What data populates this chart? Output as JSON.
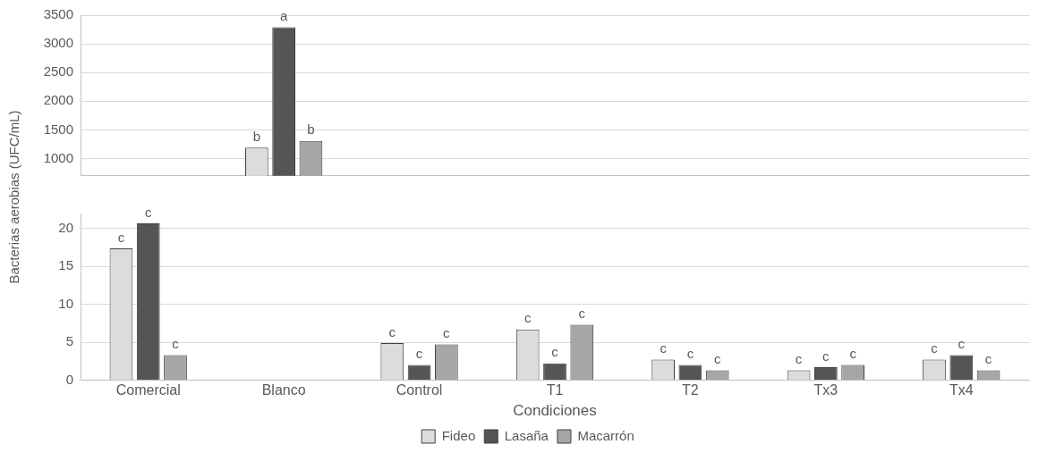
{
  "chart_data": [
    {
      "type": "bar",
      "ylabel": "Bacterias aerobias  (UFC/mL)",
      "categories": [
        null,
        null,
        null,
        null,
        null,
        null,
        null
      ],
      "series": [
        {
          "color": "#dcdcdc",
          "values": [
            null,
            1190,
            null,
            null,
            null,
            null,
            null
          ],
          "value_labels": [
            null,
            "b",
            null,
            null,
            null,
            null,
            null
          ]
        },
        {
          "color": "#555555",
          "values": [
            null,
            3290,
            null,
            null,
            null,
            null,
            null
          ],
          "value_labels": [
            null,
            "a",
            null,
            null,
            null,
            null,
            null
          ]
        },
        {
          "color": "#a6a6a6",
          "values": [
            null,
            1310,
            null,
            null,
            null,
            null,
            null
          ],
          "value_labels": [
            null,
            "b",
            null,
            null,
            null,
            null,
            null
          ]
        }
      ],
      "ylim": [
        700,
        3500
      ],
      "yticks": [
        1000,
        1500,
        2000,
        2500,
        3000,
        3500
      ],
      "grid": "y"
    },
    {
      "type": "bar",
      "xlabel": "Condiciones",
      "categories": [
        "Comercial",
        "Blanco",
        "Control",
        "T1",
        "T2",
        "Tx3",
        "Tx4"
      ],
      "series": [
        {
          "name": "Fideo",
          "color": "#dcdcdc",
          "values": [
            17.4,
            null,
            4.9,
            6.7,
            2.7,
            1.3,
            2.7
          ],
          "value_labels": [
            "c",
            null,
            "c",
            "c",
            "c",
            "c",
            "c"
          ]
        },
        {
          "name": "Lasaña",
          "color": "#555555",
          "values": [
            20.7,
            null,
            2.0,
            2.2,
            2.0,
            1.7,
            3.3
          ],
          "value_labels": [
            "c",
            null,
            "c",
            "c",
            "c",
            "c",
            "c"
          ]
        },
        {
          "name": "Macarrón",
          "color": "#a6a6a6",
          "values": [
            3.3,
            null,
            4.7,
            7.3,
            1.3,
            2.0,
            1.3
          ],
          "value_labels": [
            "c",
            null,
            "c",
            "c",
            "c",
            "c",
            "c"
          ]
        }
      ],
      "ylim": [
        0,
        22
      ],
      "yticks": [
        0,
        5,
        10,
        15,
        20
      ],
      "grid": "y",
      "legend": "bottom"
    }
  ]
}
